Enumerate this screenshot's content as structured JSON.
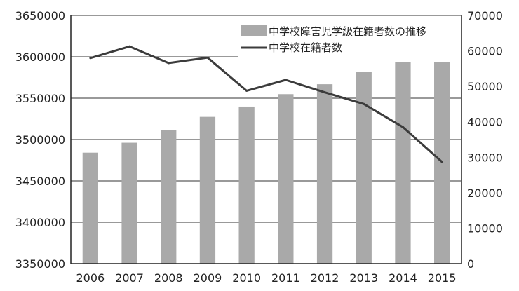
{
  "chart_data": {
    "type": "bar+line",
    "categories": [
      "2006",
      "2007",
      "2008",
      "2009",
      "2010",
      "2011",
      "2012",
      "2013",
      "2014",
      "2015"
    ],
    "series": [
      {
        "name": "中学校障害児学級在籍者数の推移",
        "type": "bar",
        "axis": "right",
        "color": "#a9a9a9",
        "values": [
          31300,
          34100,
          37700,
          41400,
          44300,
          47800,
          50600,
          54100,
          57800,
          61900
        ]
      },
      {
        "name": "中学校在籍者数",
        "type": "line",
        "axis": "left",
        "color": "#3c3c3c",
        "values": [
          3598500,
          3612500,
          3592500,
          3599000,
          3559000,
          3572000,
          3557000,
          3543000,
          3515000,
          3473000
        ]
      }
    ],
    "left_axis": {
      "min": 3350000,
      "max": 3650000,
      "ticks": [
        "3350000",
        "3400000",
        "3450000",
        "3500000",
        "3550000",
        "3600000",
        "3650000"
      ]
    },
    "right_axis": {
      "min": 0,
      "max": 70000,
      "ticks": [
        "0",
        "10000",
        "20000",
        "30000",
        "40000",
        "50000",
        "60000",
        "70000"
      ]
    },
    "grid": true,
    "legend_position": "top-right"
  }
}
